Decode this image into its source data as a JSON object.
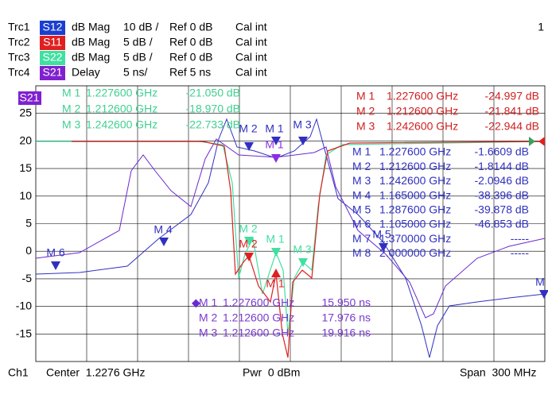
{
  "header": {
    "traces": [
      {
        "trace": "Trc1",
        "param": "S12",
        "format": "dB Mag",
        "scale": "10 dB /",
        "ref": "Ref 0 dB",
        "cal": "Cal int"
      },
      {
        "trace": "Trc2",
        "param": "S11",
        "format": "dB Mag",
        "scale": "5 dB /",
        "ref": "Ref 0 dB",
        "cal": "Cal int"
      },
      {
        "trace": "Trc3",
        "param": "S22",
        "format": "dB Mag",
        "scale": "5 dB /",
        "ref": "Ref 0 dB",
        "cal": "Cal int"
      },
      {
        "trace": "Trc4",
        "param": "S21",
        "format": "Delay",
        "scale": "5 ns/",
        "ref": "Ref 5 ns",
        "cal": "Cal int"
      }
    ],
    "channel_number": "1"
  },
  "plot": {
    "active_trace": "S21",
    "y_tick_labels": [
      "25",
      "20",
      "15",
      "10",
      "5",
      "0",
      "-5",
      "-10",
      "-15"
    ],
    "marker_labels": {
      "s12": [
        "M 2",
        "M 1",
        "M 3",
        "M 4",
        "M 6",
        "M 5",
        "M"
      ],
      "s21": [
        "M 1"
      ],
      "s22": [
        "M 2",
        "M 1",
        "M 3"
      ],
      "s11": [
        "M 2",
        "M 1"
      ]
    }
  },
  "marker_tables": {
    "s22": [
      [
        "M 1",
        "1.227600 GHz",
        "-21.050 dB"
      ],
      [
        "M 2",
        "1.212600 GHz",
        "-18.970 dB"
      ],
      [
        "M 3",
        "1.242600 GHz",
        "-22.733 dB"
      ]
    ],
    "s11": [
      [
        "M 1",
        "1.227600 GHz",
        "-24.997 dB"
      ],
      [
        "M 2",
        "1.212600 GHz",
        "-21.841 dB"
      ],
      [
        "M 3",
        "1.242600 GHz",
        "-22.944 dB"
      ]
    ],
    "s12": [
      [
        "M 1",
        "1.227600 GHz",
        "-1.6609 dB"
      ],
      [
        "M 2",
        "1.212600 GHz",
        "-1.8144 dB"
      ],
      [
        "M 3",
        "1.242600 GHz",
        "-2.0946 dB"
      ],
      [
        "M 4",
        "1.165000 GHz",
        "-38.396 dB"
      ],
      [
        "M 5",
        "1.287600 GHz",
        "-39.878 dB"
      ],
      [
        "M 6",
        "1.105000 GHz",
        "-46.853 dB"
      ],
      [
        "M 7",
        "1.370000 GHz",
        "-----"
      ],
      [
        "M 8",
        "2.000000 GHz",
        "-----"
      ]
    ],
    "s21": [
      [
        "M 1",
        "1.227600 GHz",
        "15.950 ns"
      ],
      [
        "M 2",
        "1.212600 GHz",
        "17.976 ns"
      ],
      [
        "M 3",
        "1.212600 GHz",
        "19.916 ns"
      ]
    ]
  },
  "footer": {
    "channel": "Ch1",
    "center": "Center  1.2276 GHz",
    "power": "Pwr  0 dBm",
    "span": "Span  300 MHz"
  }
}
